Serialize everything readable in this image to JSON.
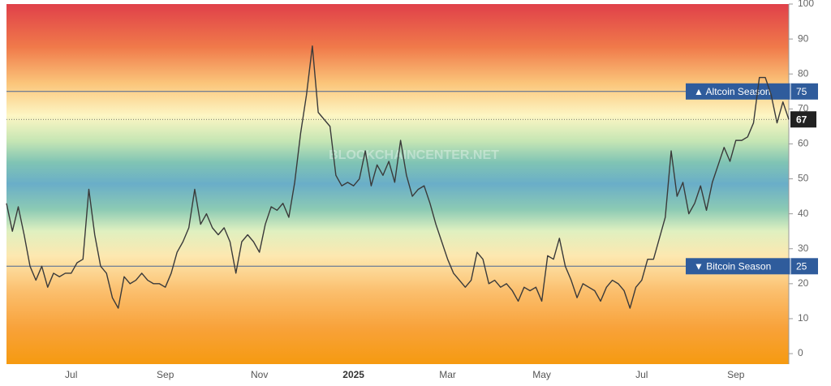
{
  "chart_data": {
    "type": "line",
    "watermark": "BLOCKCHAINCENTER.NET",
    "categories": [
      null,
      null,
      null,
      null,
      null,
      null,
      null,
      null,
      null,
      null,
      null,
      "Jul",
      null,
      null,
      null,
      null,
      null,
      null,
      null,
      null,
      null,
      null,
      null,
      null,
      null,
      null,
      null,
      "Sep",
      null,
      null,
      null,
      null,
      null,
      null,
      null,
      null,
      null,
      null,
      null,
      null,
      null,
      null,
      null,
      "Nov",
      null,
      null,
      null,
      null,
      null,
      null,
      null,
      null,
      null,
      null,
      null,
      null,
      null,
      null,
      null,
      "2025",
      null,
      null,
      null,
      null,
      null,
      null,
      null,
      null,
      null,
      null,
      null,
      null,
      null,
      null,
      null,
      "Mar",
      null,
      null,
      null,
      null,
      null,
      null,
      null,
      null,
      null,
      null,
      null,
      null,
      null,
      null,
      null,
      "May",
      null,
      null,
      null,
      null,
      null,
      null,
      null,
      null,
      null,
      null,
      null,
      null,
      null,
      null,
      null,
      null,
      "Jul",
      null,
      null,
      null,
      null,
      null,
      null,
      null,
      null,
      null,
      null,
      null,
      null,
      null,
      null,
      null,
      "Sep",
      null,
      null,
      null,
      null,
      null,
      null,
      null,
      null,
      null
    ],
    "values": [
      43,
      35,
      42,
      34,
      25,
      21,
      25,
      19,
      23,
      22,
      23,
      23,
      26,
      27,
      47,
      34,
      25,
      23,
      16,
      13,
      22,
      20,
      21,
      23,
      21,
      20,
      20,
      19,
      23,
      29,
      32,
      36,
      47,
      37,
      40,
      36,
      34,
      36,
      32,
      23,
      32,
      34,
      32,
      29,
      37,
      42,
      41,
      43,
      39,
      49,
      63,
      74,
      88,
      69,
      67,
      65,
      51,
      48,
      49,
      48,
      50,
      58,
      48,
      54,
      51,
      55,
      49,
      61,
      51,
      45,
      47,
      48,
      43,
      37,
      32,
      27,
      23,
      21,
      19,
      21,
      29,
      27,
      20,
      21,
      19,
      20,
      18,
      15,
      19,
      18,
      19,
      15,
      28,
      27,
      33,
      25,
      21,
      16,
      20,
      19,
      18,
      15,
      19,
      21,
      20,
      18,
      13,
      19,
      21,
      27,
      27,
      33,
      39,
      58,
      45,
      49,
      40,
      43,
      48,
      41,
      49,
      54,
      59,
      55,
      61,
      61,
      62,
      66,
      79,
      79,
      74,
      66,
      72,
      67
    ],
    "color": "#3a3a3a",
    "ylim": [
      -3,
      100
    ],
    "yticks": [
      0,
      10,
      20,
      30,
      40,
      50,
      60,
      70,
      80,
      90,
      100
    ],
    "reference_lines": [
      {
        "label": "▲ Altcoin Season",
        "value": 75,
        "color": "#2f5c9c"
      },
      {
        "label": "▼ Bitcoin Season",
        "value": 25,
        "color": "#2f5c9c"
      }
    ]
  }
}
